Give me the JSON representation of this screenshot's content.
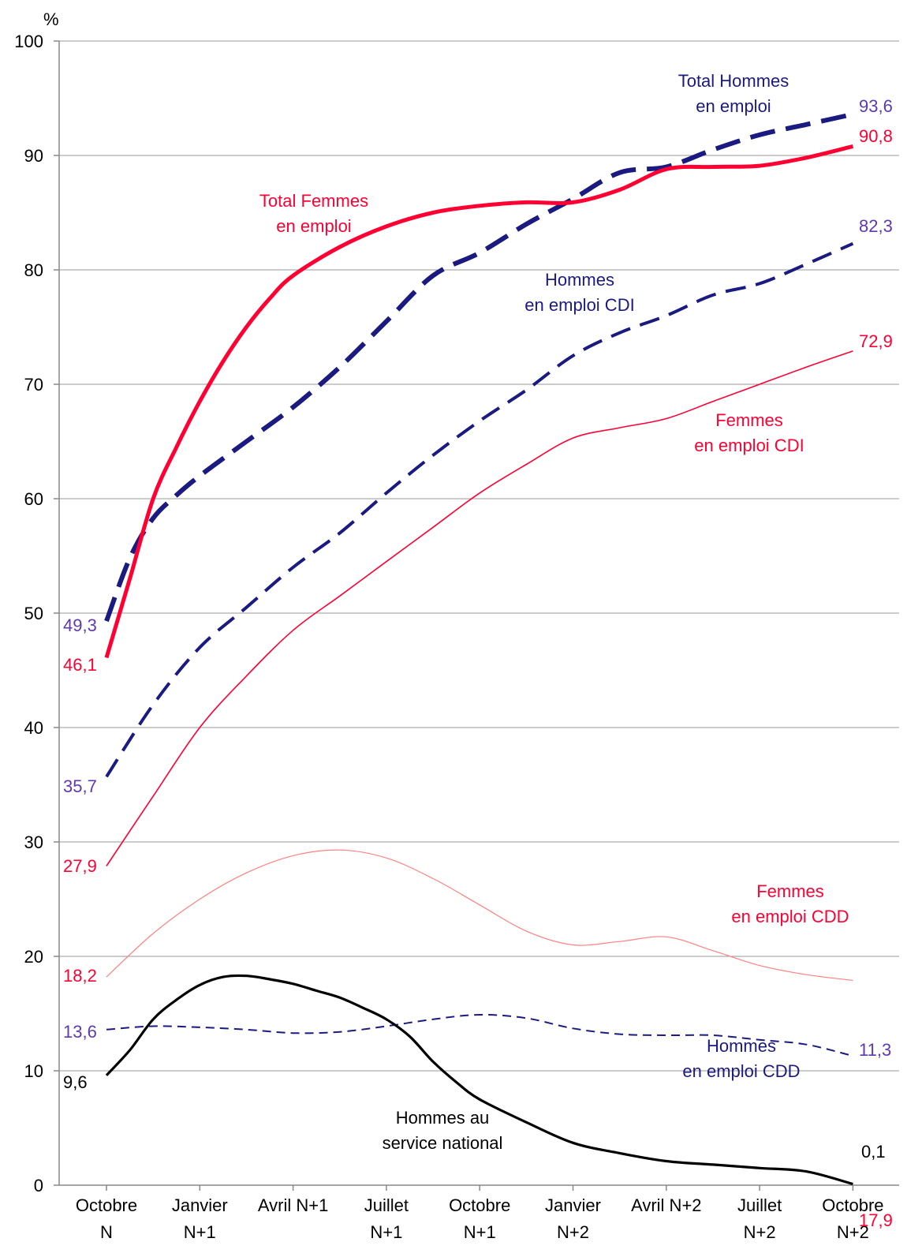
{
  "chart_data": {
    "type": "line",
    "ylabel": "%",
    "ylim": [
      0,
      100
    ],
    "yticks": [
      0,
      10,
      20,
      30,
      40,
      50,
      60,
      70,
      80,
      90,
      100
    ],
    "grid": true,
    "x": [
      0,
      1,
      2,
      3,
      4,
      5,
      6,
      7,
      8
    ],
    "categories": [
      [
        "Octobre",
        "N"
      ],
      [
        "Janvier",
        "N+1"
      ],
      [
        "Avril N+1",
        ""
      ],
      [
        "Juillet",
        "N+1"
      ],
      [
        "Octobre",
        "N+1"
      ],
      [
        "Janvier",
        "N+2"
      ],
      [
        "Avril N+2",
        ""
      ],
      [
        "Juillet",
        "N+2"
      ],
      [
        "Octobre",
        "N+2"
      ]
    ],
    "colors": {
      "women": "#ff0033",
      "women_light": "#ff8080",
      "men": "#1a1a80",
      "service": "#000000",
      "men_value": "#5e3ab0"
    },
    "series": [
      {
        "key": "total_hommes",
        "name": [
          "Total Hommes",
          "en emploi"
        ],
        "style": "dash-thick",
        "color": "#1a1a80",
        "x": [
          0,
          0.25,
          0.5,
          0.75,
          1,
          1.5,
          2,
          2.5,
          3,
          3.5,
          4,
          4.5,
          5,
          5.5,
          6,
          6.5,
          7,
          7.5,
          8
        ],
        "values": [
          49.3,
          54.8,
          58.3,
          60.3,
          62.0,
          65.0,
          68.0,
          71.5,
          75.5,
          79.5,
          81.5,
          84.0,
          86.2,
          88.5,
          89.0,
          90.5,
          91.8,
          92.7,
          93.6
        ],
        "start_label": "49,3",
        "end_label": "93,6"
      },
      {
        "key": "total_femmes",
        "name": [
          "Total Femmes",
          "en emploi"
        ],
        "style": "solid-thick",
        "color": "#ff0033",
        "x": [
          0,
          0.25,
          0.5,
          0.75,
          1,
          1.25,
          1.5,
          1.75,
          2,
          2.5,
          3,
          3.5,
          4,
          4.5,
          5,
          5.5,
          6,
          6.5,
          7,
          7.5,
          8
        ],
        "values": [
          46.1,
          53.0,
          60.0,
          64.5,
          68.5,
          72.0,
          75.0,
          77.5,
          79.5,
          82.0,
          83.8,
          85.0,
          85.6,
          85.9,
          85.9,
          87.0,
          88.8,
          89.0,
          89.1,
          89.8,
          90.8
        ],
        "start_label": "46,1",
        "end_label": "90,8"
      },
      {
        "key": "hommes_cdi",
        "name": [
          "Hommes",
          "en emploi CDI"
        ],
        "style": "dash",
        "color": "#1a1a80",
        "x": [
          0,
          0.5,
          1,
          1.5,
          2,
          2.5,
          3,
          3.5,
          4,
          4.5,
          5,
          5.5,
          6,
          6.5,
          7,
          7.5,
          8
        ],
        "values": [
          35.7,
          42.0,
          47.0,
          50.5,
          54.0,
          57.0,
          60.5,
          63.8,
          66.8,
          69.5,
          72.5,
          74.5,
          76.0,
          77.8,
          78.8,
          80.5,
          82.3
        ],
        "start_label": "35,7",
        "end_label": "82,3"
      },
      {
        "key": "femmes_cdi",
        "name": [
          "Femmes",
          "en emploi CDI"
        ],
        "style": "solid-thin",
        "color": "#ff0033",
        "x": [
          0,
          0.5,
          1,
          1.5,
          2,
          2.5,
          3,
          3.5,
          4,
          4.5,
          5,
          5.5,
          6,
          6.5,
          7,
          7.5,
          8
        ],
        "values": [
          27.9,
          34.0,
          40.0,
          44.5,
          48.5,
          51.5,
          54.5,
          57.5,
          60.5,
          63.0,
          65.3,
          66.2,
          67.0,
          68.5,
          70.0,
          71.5,
          72.9
        ],
        "start_label": "27,9",
        "end_label": "72,9"
      },
      {
        "key": "femmes_cdd",
        "name": [
          "Femmes",
          "en emploi CDD"
        ],
        "style": "solid-hairline",
        "color": "#ff8080",
        "x": [
          0,
          0.5,
          1,
          1.5,
          2,
          2.5,
          3,
          3.5,
          4,
          4.5,
          5,
          5.5,
          6,
          6.5,
          7,
          7.5,
          8
        ],
        "values": [
          18.2,
          22.0,
          25.0,
          27.3,
          28.8,
          29.3,
          28.6,
          26.8,
          24.5,
          22.2,
          21.0,
          21.3,
          21.7,
          20.5,
          19.2,
          18.4,
          17.9
        ],
        "start_label": "18,2",
        "end_label": "17,9"
      },
      {
        "key": "hommes_cdd",
        "name": [
          "Hommes",
          "en emploi CDD"
        ],
        "style": "dash-thin",
        "color": "#1a1a80",
        "x": [
          0,
          0.5,
          1,
          1.5,
          2,
          2.5,
          3,
          3.5,
          4,
          4.5,
          5,
          5.5,
          6,
          6.5,
          7,
          7.5,
          8
        ],
        "values": [
          13.6,
          13.9,
          13.8,
          13.6,
          13.3,
          13.4,
          13.9,
          14.5,
          14.9,
          14.6,
          13.7,
          13.2,
          13.1,
          13.1,
          12.7,
          12.3,
          11.3
        ],
        "start_label": "13,6",
        "end_label": "11,3"
      },
      {
        "key": "service_national",
        "name": [
          "Hommes au",
          "service national"
        ],
        "style": "solid",
        "color": "#000000",
        "x": [
          0,
          0.25,
          0.5,
          0.75,
          1,
          1.25,
          1.5,
          1.75,
          2,
          2.25,
          2.5,
          2.75,
          3,
          3.25,
          3.5,
          3.75,
          4,
          4.5,
          5,
          5.5,
          6,
          6.5,
          7,
          7.5,
          8
        ],
        "values": [
          9.6,
          11.8,
          14.5,
          16.2,
          17.5,
          18.2,
          18.3,
          18.0,
          17.6,
          17.0,
          16.4,
          15.5,
          14.5,
          13.0,
          10.8,
          9.0,
          7.5,
          5.5,
          3.7,
          2.8,
          2.1,
          1.8,
          1.5,
          1.2,
          0.1
        ],
        "start_label": "9,6",
        "end_label": "0,1"
      }
    ]
  }
}
